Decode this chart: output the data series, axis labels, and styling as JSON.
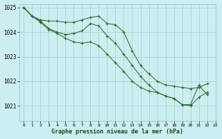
{
  "title": "Graphe pression niveau de la mer (hPa)",
  "bg_color": "#cceef0",
  "grid_color": "#aad8d8",
  "line_color": "#2d6a2d",
  "marker_color": "#2d6a2d",
  "xlim": [
    -0.5,
    23
  ],
  "ylim": [
    1020.4,
    1025.15
  ],
  "yticks": [
    1021,
    1022,
    1023,
    1024,
    1025
  ],
  "xticks": [
    0,
    1,
    2,
    3,
    4,
    5,
    6,
    7,
    8,
    9,
    10,
    11,
    12,
    13,
    14,
    15,
    16,
    17,
    18,
    19,
    20,
    21,
    22,
    23
  ],
  "series": [
    {
      "x": [
        0,
        1,
        2,
        3,
        4,
        5,
        6,
        7,
        8,
        9,
        10,
        11,
        12,
        13,
        14,
        15,
        16,
        17,
        18,
        19,
        20,
        21,
        22
      ],
      "y": [
        1025.0,
        1024.65,
        1024.5,
        1024.45,
        1024.45,
        1024.4,
        1024.4,
        1024.5,
        1024.6,
        1024.65,
        1024.35,
        1024.3,
        1024.0,
        1023.25,
        1022.65,
        1022.3,
        1022.0,
        1021.85,
        1021.8,
        1021.75,
        1021.7,
        1021.75,
        1021.9
      ]
    },
    {
      "x": [
        0,
        1,
        2,
        3,
        4,
        5,
        6,
        7,
        8,
        9,
        10,
        11,
        12,
        13,
        14,
        15,
        16,
        17,
        18,
        19,
        20,
        21,
        22
      ],
      "y": [
        1025.0,
        1024.65,
        1024.45,
        1024.15,
        1024.0,
        1023.9,
        1023.95,
        1024.05,
        1024.35,
        1024.25,
        1023.85,
        1023.55,
        1023.1,
        1022.65,
        1022.2,
        1021.85,
        1021.55,
        1021.4,
        1021.3,
        1021.05,
        1021.05,
        1021.85,
        1021.45
      ]
    },
    {
      "x": [
        0,
        1,
        2,
        3,
        4,
        5,
        6,
        7,
        8,
        9,
        10,
        11,
        12,
        13,
        14,
        15,
        16,
        17,
        18,
        19,
        20,
        21,
        22
      ],
      "y": [
        1025.0,
        1024.65,
        1024.4,
        1024.1,
        1023.95,
        1023.75,
        1023.6,
        1023.55,
        1023.6,
        1023.45,
        1023.1,
        1022.75,
        1022.4,
        1022.0,
        1021.75,
        1021.6,
        1021.55,
        1021.4,
        1021.3,
        1021.05,
        1021.0,
        1021.35,
        1021.55
      ]
    }
  ]
}
